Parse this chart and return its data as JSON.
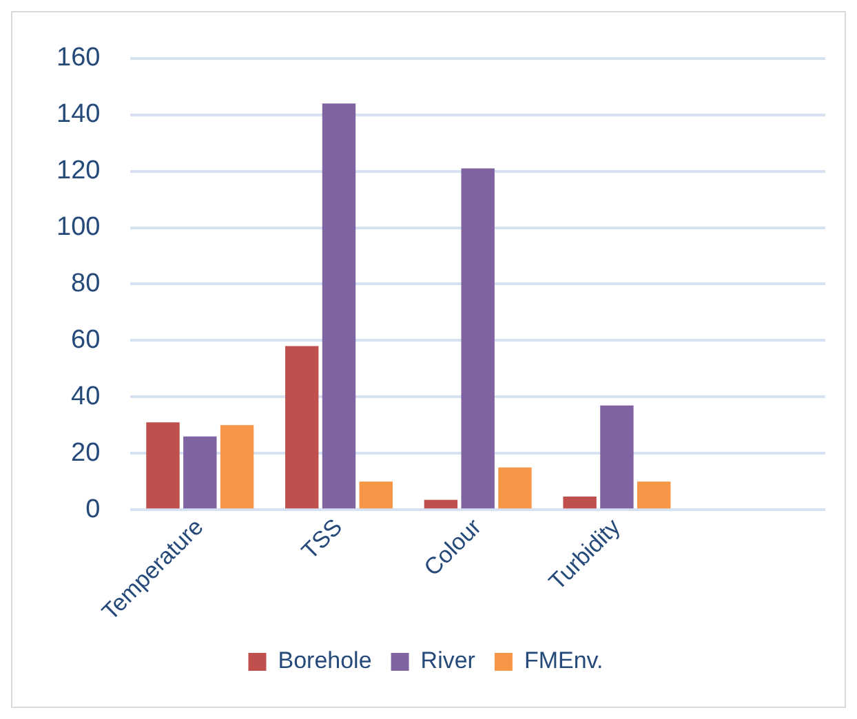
{
  "chart_data": {
    "type": "bar",
    "categories": [
      "Temperature",
      "TSS",
      "Colour",
      "Turbidity",
      null
    ],
    "series": [
      {
        "name": "Borehole",
        "color": "#c0504d",
        "values": [
          31,
          58,
          3.5,
          4.7,
          null
        ]
      },
      {
        "name": "River",
        "color": "#8064a2",
        "values": [
          26,
          144,
          121,
          37,
          null
        ]
      },
      {
        "name": "FMEnv.",
        "color": "#f79646",
        "values": [
          30,
          10,
          15,
          10,
          null
        ]
      }
    ],
    "ylim": [
      0,
      160
    ],
    "yticks": [
      0,
      20,
      40,
      60,
      80,
      100,
      120,
      140,
      160
    ],
    "grid": "y",
    "legend": "bottom"
  }
}
